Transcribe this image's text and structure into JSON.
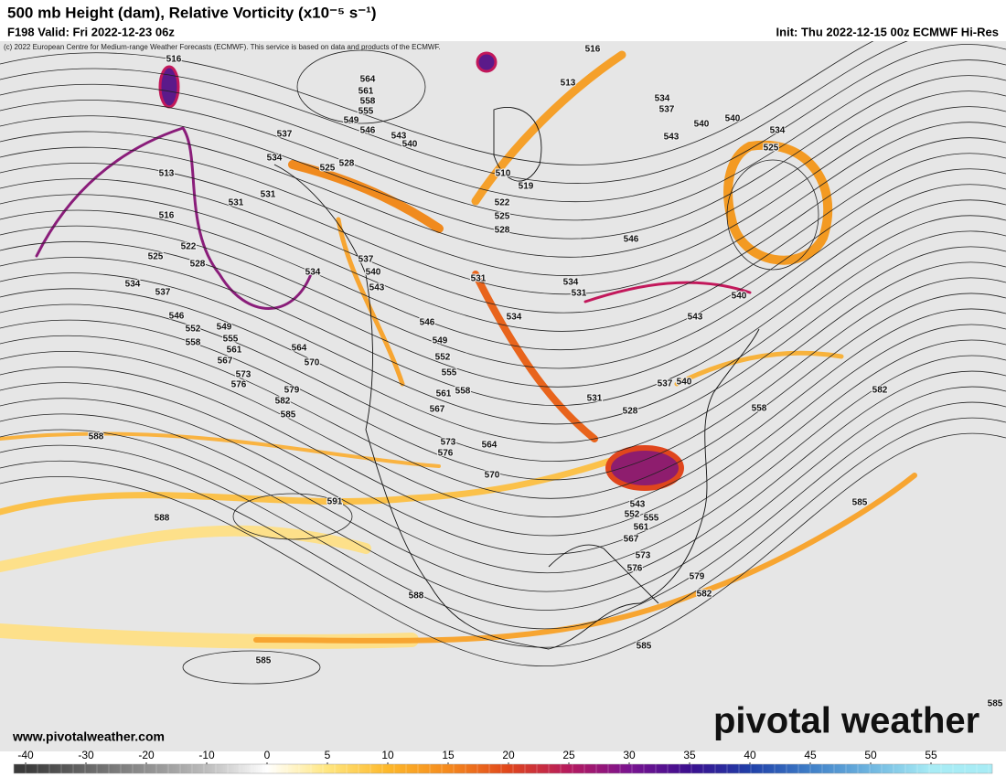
{
  "header": {
    "title": "500 mb Height (dam), Relative Vorticity (x10⁻⁵ s⁻¹)",
    "valid": "F198 Valid: Fri 2022-12-23 06z",
    "init": "Init: Thu 2022-12-15 00z ECMWF Hi-Res",
    "copyright": "(c) 2022 European Centre for Medium-range Weather Forecasts (ECMWF). This service is based on data and products of the ECMWF."
  },
  "footer": {
    "website": "www.pivotalweather.com",
    "logo": "pivotal weather"
  },
  "colorbar": {
    "ticks": [
      -40,
      -30,
      -20,
      -10,
      0,
      5,
      10,
      15,
      20,
      25,
      30,
      35,
      40,
      45,
      50,
      55
    ],
    "colors": [
      "#3a3a3a",
      "#666666",
      "#8f8f8f",
      "#bdbdbd",
      "#ffffff",
      "#ffe680",
      "#fdb82b",
      "#f58a1e",
      "#e0461c",
      "#b51a5e",
      "#7a1490",
      "#3b0f8f",
      "#1f3fa8",
      "#3f7fc8",
      "#6fb6e0",
      "#a8ecf5"
    ]
  },
  "contour_labels": [
    516,
    564,
    561,
    558,
    555,
    549,
    546,
    543,
    540,
    537,
    534,
    528,
    525,
    531,
    531,
    513,
    516,
    522,
    525,
    528,
    534,
    537,
    546,
    552,
    558,
    549,
    555,
    561,
    567,
    573,
    576,
    579,
    582,
    585,
    564,
    570,
    588,
    534,
    537,
    540,
    543,
    546,
    549,
    552,
    555,
    561,
    558,
    567,
    573,
    576,
    564,
    570,
    591,
    588,
    588,
    585,
    585,
    513,
    516,
    510,
    519,
    522,
    525,
    528,
    531,
    534,
    534,
    531,
    534,
    537,
    540,
    540,
    543,
    546,
    534,
    525,
    540,
    543,
    537,
    540,
    531,
    528,
    558,
    582,
    585,
    543,
    552,
    555,
    561,
    567,
    573,
    576,
    579,
    582,
    585
  ]
}
